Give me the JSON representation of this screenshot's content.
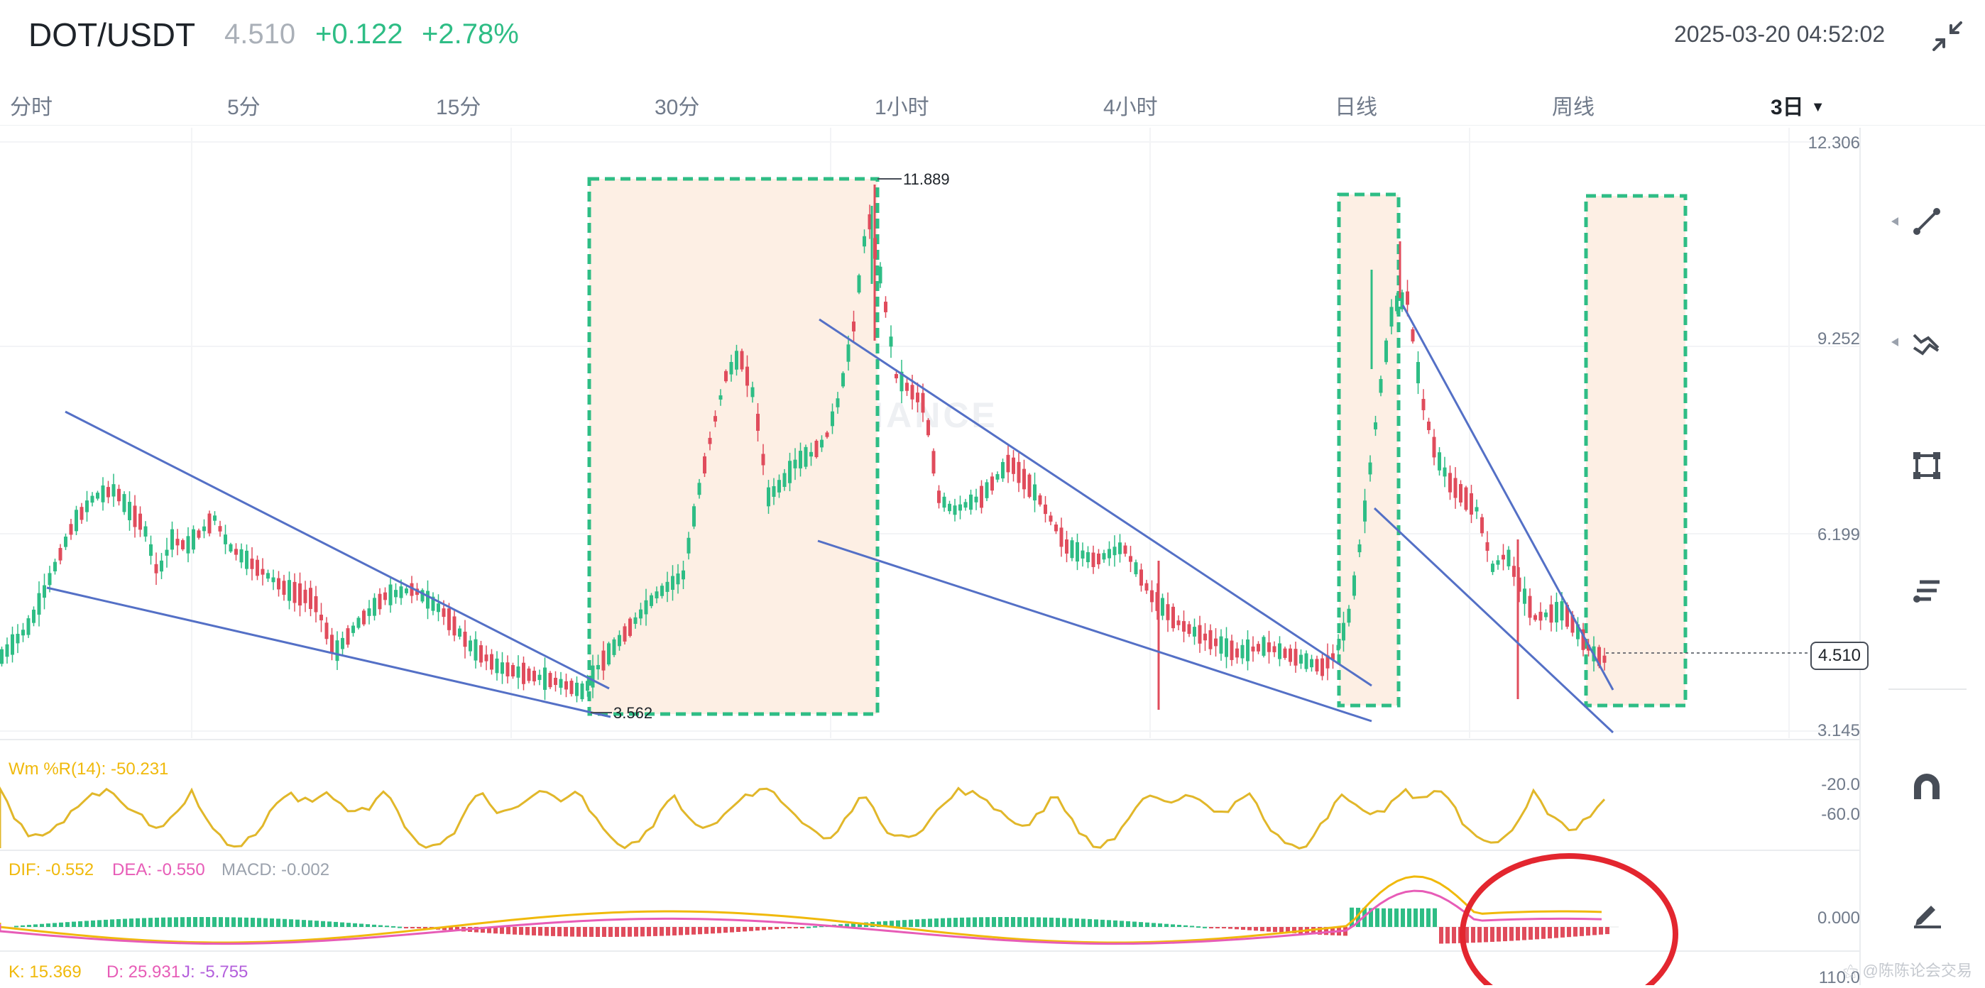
{
  "header": {
    "pair": "DOT/USDT",
    "price": "4.510",
    "change": "+0.122",
    "change_pct": "+2.78%",
    "datetime": "2025-03-20 04:52:02",
    "collapse_icon": "collapse-arrows-icon"
  },
  "tabs": [
    {
      "label": "分时"
    },
    {
      "label": "5分"
    },
    {
      "label": "15分"
    },
    {
      "label": "30分"
    },
    {
      "label": "1小时"
    },
    {
      "label": "4小时"
    },
    {
      "label": "日线"
    },
    {
      "label": "周线"
    },
    {
      "label": "3日",
      "active": true
    }
  ],
  "price_axis": {
    "labels": [
      "12.306",
      "9.252",
      "6.199",
      "3.145"
    ],
    "last_price": "4.510",
    "high_label": "11.889",
    "low_label": "3.562"
  },
  "watermark": "BINANCE",
  "indicators": {
    "wr": {
      "label": "Wm %R(14): -50.231",
      "levels": [
        "-20.0",
        "-60.0"
      ]
    },
    "macd": {
      "dif": "DIF: -0.552",
      "dea": "DEA: -0.550",
      "macd": "MACD: -0.002",
      "zero": "0.000"
    },
    "kdj": {
      "k": "K: 15.369",
      "d": "D: 25.931",
      "j": "J: -5.755",
      "level": "110.0"
    }
  },
  "tools": [
    "trend-line-icon",
    "multi-line-icon",
    "rectangle-icon",
    "fib-lines-icon",
    "magnet-icon",
    "pen-icon"
  ],
  "credit": "⚝ @陈陈论会交易",
  "colors": {
    "up": "#2ebd85",
    "down": "#e04c5c",
    "trendline": "#5470c6",
    "highlight_fill": "#fdefe4",
    "highlight_border": "#2ebd85",
    "circle": "#e3262f"
  }
}
